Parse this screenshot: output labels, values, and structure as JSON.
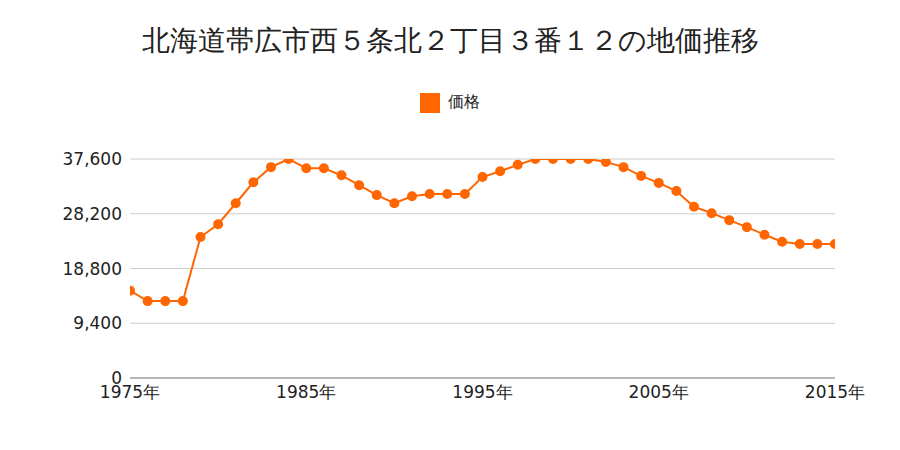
{
  "chart_data": {
    "type": "line",
    "title": "北海道帯広市西５条北２丁目３番１２の地価推移",
    "x": [
      1975,
      1976,
      1977,
      1978,
      1979,
      1980,
      1981,
      1982,
      1983,
      1984,
      1985,
      1986,
      1987,
      1988,
      1989,
      1990,
      1991,
      1992,
      1993,
      1994,
      1995,
      1996,
      1997,
      1998,
      1999,
      2000,
      2001,
      2002,
      2003,
      2004,
      2005,
      2006,
      2007,
      2008,
      2009,
      2010,
      2011,
      2012,
      2013,
      2014,
      2015
    ],
    "series": [
      {
        "name": "価格",
        "color": "#ff6600",
        "marker": "circle",
        "values": [
          15000,
          13200,
          13200,
          13200,
          24200,
          26400,
          30000,
          33600,
          36200,
          37600,
          36000,
          36000,
          34800,
          33100,
          31400,
          30000,
          31200,
          31600,
          31600,
          31600,
          34500,
          35500,
          36600,
          37600,
          37600,
          37600,
          37600,
          37100,
          36200,
          34700,
          33500,
          32100,
          29400,
          28300,
          27100,
          25900,
          24600,
          23400,
          23000,
          23000,
          23000
        ]
      }
    ],
    "xlim": [
      1975,
      2015
    ],
    "xticks": [
      {
        "value": 1975,
        "label": "1975年"
      },
      {
        "value": 1985,
        "label": "1985年"
      },
      {
        "value": 1995,
        "label": "1995年"
      },
      {
        "value": 2005,
        "label": "2005年"
      },
      {
        "value": 2015,
        "label": "2015年"
      }
    ],
    "ylim": [
      0,
      37600
    ],
    "yticks": [
      0,
      {
        "value": 9400,
        "label": "9,400"
      },
      {
        "value": 18800,
        "label": "18,800"
      },
      {
        "value": 28200,
        "label": "28,200"
      },
      {
        "value": 37600,
        "label": "37,600"
      }
    ],
    "grid": true,
    "legend": "top"
  }
}
